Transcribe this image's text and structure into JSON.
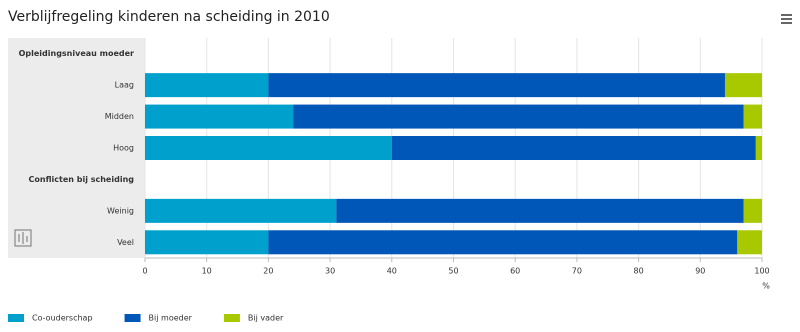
{
  "chart_data": {
    "type": "stacked-bar-horizontal",
    "title": "Verblijfregeling kinderen na scheiding in 2010",
    "categories": [
      "Opleidingsniveau moeder",
      "Laag",
      "Midden",
      "Hoog",
      "Conflicten bij scheiding",
      "Weinig",
      "Veel"
    ],
    "series": [
      {
        "name": "Co-ouderschap",
        "color": "#00a0cc",
        "values": [
          null,
          20,
          24,
          40,
          null,
          31,
          20
        ]
      },
      {
        "name": "Bij moeder",
        "color": "#0057b7",
        "values": [
          null,
          74,
          73,
          59,
          null,
          66,
          76
        ]
      },
      {
        "name": "Bij vader",
        "color": "#a8c800",
        "values": [
          null,
          6,
          3,
          1,
          null,
          3,
          4
        ]
      }
    ],
    "xlim": [
      0,
      100
    ],
    "xticks": [
      0,
      10,
      20,
      30,
      40,
      50,
      60,
      70,
      80,
      90,
      100
    ],
    "xlabel": "%",
    "grid": true,
    "legend": "bottom-left"
  }
}
